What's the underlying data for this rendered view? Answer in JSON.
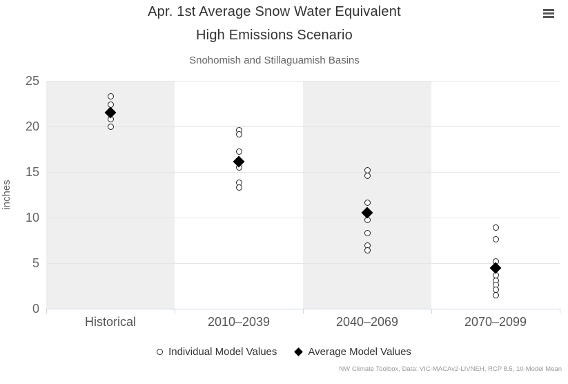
{
  "header": {
    "title_line1": "Apr. 1st Average Snow Water Equivalent",
    "title_line2": "High Emissions Scenario",
    "subtitle": "Snohomish and Stillaguamish Basins"
  },
  "menu": {
    "icon": "hamburger-icon"
  },
  "chart_data": {
    "type": "scatter",
    "title": "Apr. 1st Average Snow Water Equivalent High Emissions Scenario",
    "subtitle": "Snohomish and Stillaguamish Basins",
    "categories": [
      "Historical",
      "2010–2039",
      "2040–2069",
      "2070–2099"
    ],
    "xlabel": "",
    "ylabel": "inches",
    "ylim": [
      0,
      25
    ],
    "yticks": [
      0,
      5,
      10,
      15,
      20,
      25
    ],
    "grid": true,
    "alternating_column_bands": true,
    "legend_position": "bottom",
    "series": [
      {
        "name": "Individual Model Values",
        "marker": "circle",
        "points_by_category": [
          [
            23.3,
            22.4,
            20.8,
            20.0
          ],
          [
            19.6,
            19.1,
            17.2,
            15.5,
            13.8,
            13.3
          ],
          [
            15.2,
            14.6,
            11.6,
            9.7,
            8.3,
            6.9,
            6.4
          ],
          [
            8.9,
            7.6,
            5.2,
            3.7,
            3.1,
            2.6,
            2.1,
            1.5
          ]
        ]
      },
      {
        "name": "Average Model Values",
        "marker": "diamond",
        "values": [
          21.5,
          16.1,
          10.5,
          4.5
        ]
      }
    ]
  },
  "legend": {
    "items": [
      {
        "label": "Individual Model Values",
        "marker": "circle"
      },
      {
        "label": "Average Model Values",
        "marker": "diamond"
      }
    ]
  },
  "credits": {
    "text": "NW Climate Toolbox, Data: VIC-MACAv2-LIVNEH, RCP 8.5, 10-Model Mean"
  },
  "colors": {
    "band": "#efefef",
    "gridline": "#e6e6e6",
    "axis_line": "#ccd6eb",
    "marker_stroke": "#222222",
    "marker_fill": "#ffffff",
    "average_marker": "#000000",
    "title_text": "#333333",
    "subtitle_text": "#666666",
    "y_label_text": "#666666",
    "x_label_text": "#555555",
    "credits_text": "#999999",
    "menu_icon": "#555555"
  }
}
